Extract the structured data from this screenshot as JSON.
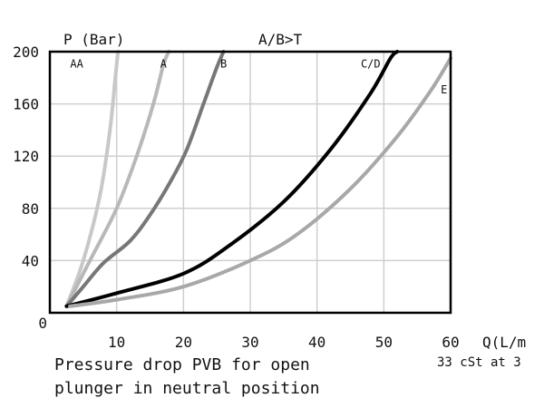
{
  "chart_data": {
    "type": "line",
    "title": "A/B>T",
    "ylabel": "P (Bar)",
    "xlabel": "Q(L/m",
    "caption": [
      "Pressure drop PVB for open",
      "plunger in neutral position"
    ],
    "note": "33 cSt at 3",
    "xlim": [
      0,
      60
    ],
    "ylim": [
      0,
      200
    ],
    "xticks": [
      10,
      20,
      30,
      40,
      50,
      60
    ],
    "yticks": [
      0,
      40,
      80,
      120,
      160,
      200
    ],
    "grid": true,
    "series": [
      {
        "name": "AA",
        "color": "#c8c8c8",
        "label_at": [
          5,
          188
        ],
        "points": [
          [
            2.5,
            5
          ],
          [
            5,
            40
          ],
          [
            7.5,
            90
          ],
          [
            9,
            140
          ],
          [
            9.8,
            180
          ],
          [
            10.2,
            200
          ]
        ]
      },
      {
        "name": "A",
        "color": "#b8b8b8",
        "label_at": [
          17.5,
          188
        ],
        "points": [
          [
            2.5,
            5
          ],
          [
            6,
            40
          ],
          [
            10,
            80
          ],
          [
            13,
            120
          ],
          [
            15.5,
            160
          ],
          [
            17,
            190
          ],
          [
            17.8,
            200
          ]
        ]
      },
      {
        "name": "B",
        "color": "#777777",
        "label_at": [
          26.5,
          188
        ],
        "points": [
          [
            2.5,
            5
          ],
          [
            5,
            20
          ],
          [
            8,
            38
          ],
          [
            12,
            55
          ],
          [
            15,
            75
          ],
          [
            18,
            100
          ],
          [
            20.5,
            125
          ],
          [
            23,
            160
          ],
          [
            25,
            188
          ],
          [
            26,
            200
          ]
        ]
      },
      {
        "name": "C/D",
        "color": "#000000",
        "label_at": [
          49.5,
          188
        ],
        "points": [
          [
            2.5,
            5
          ],
          [
            10,
            15
          ],
          [
            20,
            30
          ],
          [
            27,
            52
          ],
          [
            35,
            85
          ],
          [
            42,
            125
          ],
          [
            48,
            168
          ],
          [
            51,
            195
          ],
          [
            52,
            200
          ]
        ]
      },
      {
        "name": "E",
        "color": "#a8a8a8",
        "label_at": [
          59.5,
          168
        ],
        "points": [
          [
            3,
            5
          ],
          [
            10,
            10
          ],
          [
            20,
            20
          ],
          [
            30,
            40
          ],
          [
            37,
            60
          ],
          [
            45,
            95
          ],
          [
            52,
            135
          ],
          [
            57,
            170
          ],
          [
            60,
            195
          ]
        ]
      }
    ]
  }
}
